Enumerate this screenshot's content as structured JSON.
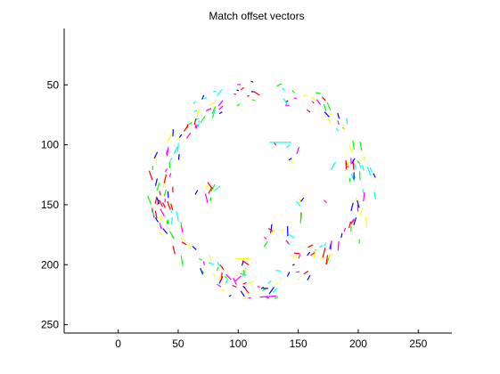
{
  "chart_data": {
    "type": "quiver",
    "title": "Match offset vectors",
    "xlabel": "",
    "ylabel": "",
    "xlim": [
      -45,
      278
    ],
    "ylim": [
      257,
      3
    ],
    "y_reversed": true,
    "xticks": [
      0,
      50,
      100,
      150,
      200,
      250
    ],
    "yticks": [
      50,
      100,
      150,
      200,
      250
    ],
    "grid": false,
    "legend": "none",
    "colors": [
      "#ff0000",
      "#00ff00",
      "#0000ff",
      "#00ffff",
      "#ff00ff",
      "#ffff00"
    ],
    "color_cycle": [
      "red",
      "green",
      "blue",
      "cyan",
      "magenta",
      "yellow"
    ],
    "vector_count": 261,
    "vector_spec": "Match offset segments arranged along a ring: center (120, 135) in data units, radius ~88; a cluster inside the ring near (100-160, 180-210); each vector is a short segment (length 3-9 data units) with direction varying around the ring.",
    "seed": 7
  }
}
